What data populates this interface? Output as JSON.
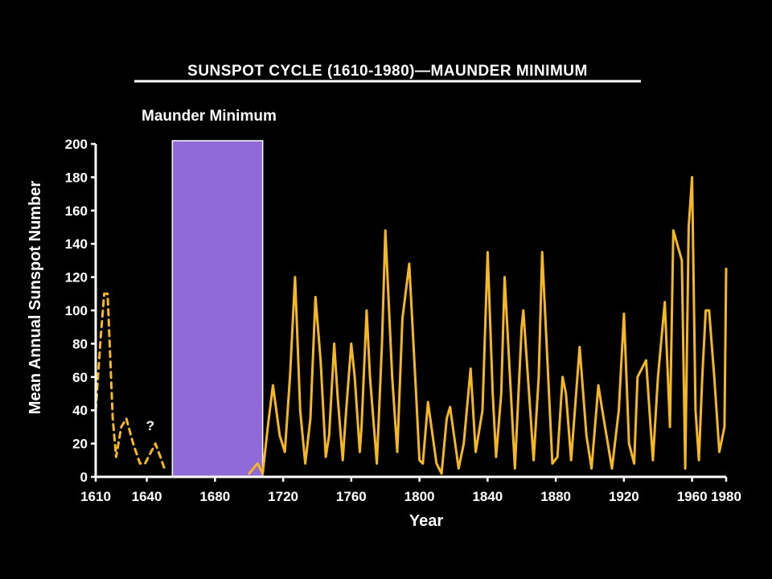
{
  "chart_data": {
    "type": "line",
    "title": "SUNSPOT CYCLE (1610-1980)—MAUNDER MINIMUM",
    "xlabel": "Year",
    "ylabel": "Mean Annual Sunspot Number",
    "xlim": [
      1610,
      1980
    ],
    "ylim": [
      0,
      200
    ],
    "x_ticks": [
      "1610",
      "1640",
      "1680",
      "1720",
      "1760",
      "1800",
      "1840",
      "1880",
      "1920",
      "1960",
      "1980"
    ],
    "x_tick_values": [
      1610,
      1640,
      1680,
      1720,
      1760,
      1800,
      1840,
      1880,
      1920,
      1960,
      1980
    ],
    "y_ticks": [
      "0",
      "20",
      "40",
      "60",
      "80",
      "100",
      "120",
      "140",
      "160",
      "180",
      "200"
    ],
    "y_tick_values": [
      0,
      20,
      40,
      60,
      80,
      100,
      120,
      140,
      160,
      180,
      200
    ],
    "grid": false,
    "shaded_region": {
      "label": "Maunder Minimum",
      "x_start": 1655,
      "x_end": 1708,
      "color": "#8f6ad8"
    },
    "annotation": {
      "text": "?",
      "x": 1642,
      "y": 28
    },
    "colors": {
      "series": "#f5b820",
      "background": "#000000",
      "axis": "#ffffff"
    },
    "series": [
      {
        "style": "dashed",
        "x": [
          1610,
          1613,
          1615,
          1617,
          1620,
          1622,
          1625,
          1628,
          1632,
          1636,
          1639,
          1642,
          1645,
          1648,
          1651
        ],
        "y": [
          40,
          85,
          110,
          110,
          35,
          12,
          30,
          35,
          20,
          8,
          8,
          14,
          20,
          12,
          3
        ]
      },
      {
        "style": "solid",
        "x": [
          1700,
          1705,
          1708,
          1711,
          1714,
          1718,
          1721,
          1724,
          1727,
          1730,
          1733,
          1736,
          1739,
          1742,
          1745,
          1747,
          1750,
          1752,
          1755,
          1757,
          1760,
          1762,
          1765,
          1766,
          1769,
          1771,
          1775,
          1778,
          1780,
          1784,
          1787,
          1790,
          1794,
          1798,
          1800,
          1802,
          1805,
          1810,
          1813,
          1816,
          1818,
          1823,
          1826,
          1830,
          1833,
          1837,
          1840,
          1843,
          1845,
          1848,
          1850,
          1856,
          1860,
          1861,
          1867,
          1870,
          1872,
          1878,
          1881,
          1884,
          1886,
          1889,
          1894,
          1898,
          1901,
          1905,
          1907,
          1913,
          1917,
          1920,
          1923,
          1926,
          1928,
          1933,
          1937,
          1940,
          1944,
          1947,
          1949,
          1954,
          1956,
          1958,
          1960,
          1962,
          1964,
          1966,
          1968,
          1970,
          1973,
          1976,
          1979,
          1980
        ],
        "y": [
          2,
          8,
          2,
          30,
          55,
          25,
          15,
          60,
          120,
          40,
          8,
          35,
          108,
          70,
          12,
          25,
          80,
          48,
          10,
          40,
          80,
          60,
          15,
          30,
          100,
          60,
          8,
          80,
          148,
          60,
          15,
          95,
          128,
          50,
          10,
          8,
          45,
          8,
          2,
          35,
          42,
          5,
          20,
          65,
          15,
          40,
          135,
          50,
          12,
          50,
          120,
          5,
          90,
          100,
          10,
          60,
          135,
          8,
          12,
          60,
          50,
          10,
          78,
          25,
          5,
          55,
          42,
          5,
          40,
          98,
          20,
          8,
          60,
          70,
          10,
          60,
          105,
          30,
          148,
          130,
          5,
          150,
          180,
          40,
          10,
          60,
          100,
          100,
          60,
          15,
          30,
          125
        ]
      }
    ]
  }
}
